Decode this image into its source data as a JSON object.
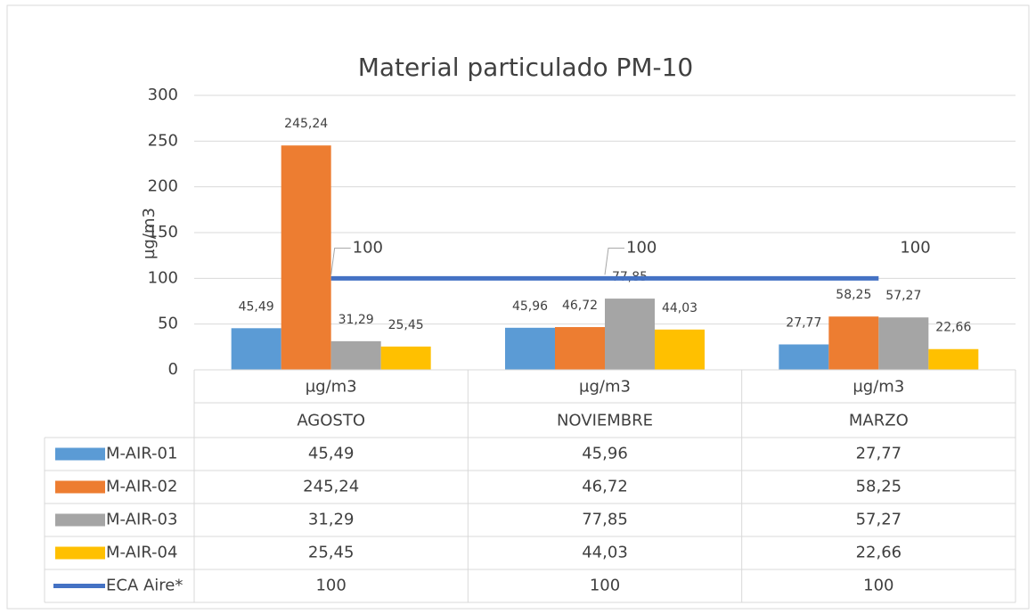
{
  "chart_data": {
    "type": "bar",
    "title": "Material particulado PM-10",
    "y_label": "µg/m3",
    "categories": [
      "AGOSTO",
      "NOVIEMBRE",
      "MARZO"
    ],
    "category_units": [
      "µg/m3",
      "µg/m3",
      "µg/m3"
    ],
    "series": [
      {
        "name": "M-AIR-01",
        "color": "#5b9bd5",
        "values": [
          45.49,
          45.96,
          27.77
        ],
        "value_labels": [
          "45,49",
          "45,96",
          "27,77"
        ]
      },
      {
        "name": "M-AIR-02",
        "color": "#ed7d31",
        "values": [
          245.24,
          46.72,
          58.25
        ],
        "value_labels": [
          "245,24",
          "46,72",
          "58,25"
        ]
      },
      {
        "name": "M-AIR-03",
        "color": "#a5a5a5",
        "values": [
          31.29,
          77.85,
          57.27
        ],
        "value_labels": [
          "31,29",
          "77,85",
          "57,27"
        ]
      },
      {
        "name": "M-AIR-04",
        "color": "#ffc000",
        "values": [
          25.45,
          44.03,
          22.66
        ],
        "value_labels": [
          "25,45",
          "44,03",
          "22,66"
        ]
      },
      {
        "name": "ECA Aire*",
        "color": "#4472c4",
        "type": "line",
        "values": [
          100,
          100,
          100
        ]
      }
    ],
    "ylim": [
      0,
      300
    ],
    "yticks": [
      0,
      50,
      100,
      150,
      200,
      250,
      300
    ],
    "grid": true,
    "data_table": true
  }
}
